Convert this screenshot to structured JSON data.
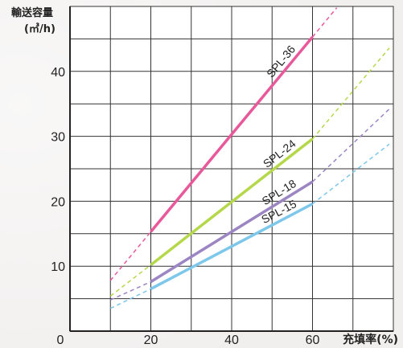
{
  "chart_data": {
    "type": "line",
    "ylabel": "輸送容量",
    "ylabel_unit": "(㎥/h)",
    "xlabel": "充填率(%)",
    "xlim": [
      0,
      80
    ],
    "ylim": [
      0,
      50
    ],
    "x_ticks": [
      "0",
      "20",
      "40",
      "60"
    ],
    "y_ticks": [
      "10",
      "20",
      "30",
      "40"
    ],
    "grid": true,
    "series": [
      {
        "name": "SPL-36",
        "color": "#e8589a",
        "solid": [
          [
            20,
            15.3
          ],
          [
            60,
            45.3
          ]
        ],
        "dashed_start": [
          10,
          7.8
        ],
        "dashed_end": [
          66,
          49.8
        ]
      },
      {
        "name": "SPL-24",
        "color": "#b4d84a",
        "solid": [
          [
            20,
            10.2
          ],
          [
            60,
            29.6
          ]
        ],
        "dashed_start": [
          10,
          5.4
        ],
        "dashed_end": [
          79,
          43.6
        ]
      },
      {
        "name": "SPL-18",
        "color": "#9b85c3",
        "solid": [
          [
            20,
            7.6
          ],
          [
            60,
            23.0
          ]
        ],
        "dashed_start": [
          10,
          4.8
        ],
        "dashed_end": [
          79,
          34.2
        ]
      },
      {
        "name": "SPL-15",
        "color": "#7cc7ea",
        "solid": [
          [
            20,
            6.5
          ],
          [
            60,
            19.6
          ]
        ],
        "dashed_start": [
          10,
          3.5
        ],
        "dashed_end": [
          79,
          28.8
        ]
      }
    ]
  }
}
